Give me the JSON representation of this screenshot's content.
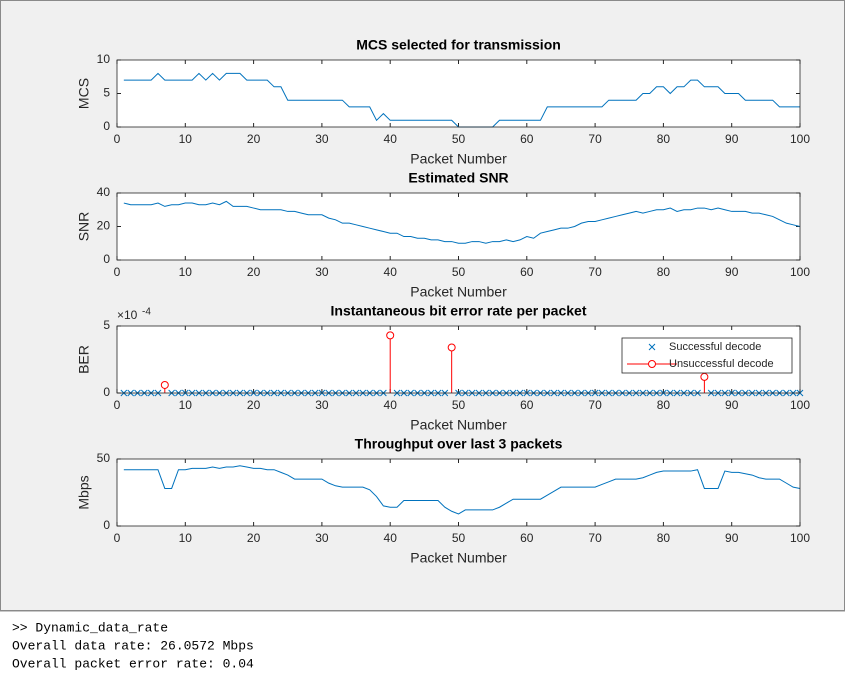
{
  "chart_data": [
    {
      "type": "line",
      "title": "MCS selected for transmission",
      "xlabel": "Packet Number",
      "ylabel": "MCS",
      "color": "#0072bd",
      "x": [
        1,
        2,
        3,
        4,
        5,
        6,
        7,
        8,
        9,
        10,
        11,
        12,
        13,
        14,
        15,
        16,
        17,
        18,
        19,
        20,
        21,
        22,
        23,
        24,
        25,
        26,
        27,
        28,
        29,
        30,
        31,
        32,
        33,
        34,
        35,
        36,
        37,
        38,
        39,
        40,
        41,
        42,
        43,
        44,
        45,
        46,
        47,
        48,
        49,
        50,
        51,
        52,
        53,
        54,
        55,
        56,
        57,
        58,
        59,
        60,
        61,
        62,
        63,
        64,
        65,
        66,
        67,
        68,
        69,
        70,
        71,
        72,
        73,
        74,
        75,
        76,
        77,
        78,
        79,
        80,
        81,
        82,
        83,
        84,
        85,
        86,
        87,
        88,
        89,
        90,
        91,
        92,
        93,
        94,
        95,
        96,
        97,
        98,
        99,
        100
      ],
      "values": [
        7,
        7,
        7,
        7,
        7,
        8,
        7,
        7,
        7,
        7,
        7,
        8,
        7,
        8,
        7,
        8,
        8,
        8,
        7,
        7,
        7,
        7,
        6,
        6,
        4,
        4,
        4,
        4,
        4,
        4,
        4,
        4,
        4,
        3,
        3,
        3,
        3,
        1,
        2,
        1,
        1,
        1,
        1,
        1,
        1,
        1,
        1,
        1,
        1,
        0,
        0,
        0,
        0,
        0,
        0,
        1,
        1,
        1,
        1,
        1,
        1,
        1,
        3,
        3,
        3,
        3,
        3,
        3,
        3,
        3,
        3,
        4,
        4,
        4,
        4,
        4,
        5,
        5,
        6,
        6,
        5,
        6,
        6,
        7,
        7,
        6,
        6,
        6,
        5,
        5,
        5,
        4,
        4,
        4,
        4,
        4,
        3,
        3,
        3,
        3
      ],
      "xlim": [
        0,
        100
      ],
      "xticks": [
        0,
        10,
        20,
        30,
        40,
        50,
        60,
        70,
        80,
        90,
        100
      ],
      "ylim": [
        0,
        10
      ],
      "yticks": [
        0,
        5,
        10
      ]
    },
    {
      "type": "line",
      "title": "Estimated SNR",
      "xlabel": "Packet Number",
      "ylabel": "SNR",
      "color": "#0072bd",
      "x": [
        1,
        2,
        3,
        4,
        5,
        6,
        7,
        8,
        9,
        10,
        11,
        12,
        13,
        14,
        15,
        16,
        17,
        18,
        19,
        20,
        21,
        22,
        23,
        24,
        25,
        26,
        27,
        28,
        29,
        30,
        31,
        32,
        33,
        34,
        35,
        36,
        37,
        38,
        39,
        40,
        41,
        42,
        43,
        44,
        45,
        46,
        47,
        48,
        49,
        50,
        51,
        52,
        53,
        54,
        55,
        56,
        57,
        58,
        59,
        60,
        61,
        62,
        63,
        64,
        65,
        66,
        67,
        68,
        69,
        70,
        71,
        72,
        73,
        74,
        75,
        76,
        77,
        78,
        79,
        80,
        81,
        82,
        83,
        84,
        85,
        86,
        87,
        88,
        89,
        90,
        91,
        92,
        93,
        94,
        95,
        96,
        97,
        98,
        99,
        100
      ],
      "values": [
        34,
        33,
        33,
        33,
        33,
        34,
        32,
        33,
        33,
        34,
        34,
        33,
        33,
        34,
        33,
        35,
        32,
        32,
        32,
        31,
        30,
        30,
        30,
        30,
        29,
        29,
        28,
        27,
        27,
        27,
        25,
        24,
        22,
        22,
        21,
        20,
        19,
        18,
        17,
        16,
        16,
        14,
        14,
        13,
        13,
        12,
        12,
        11,
        11,
        10,
        10,
        11,
        11,
        10,
        11,
        11,
        12,
        11,
        12,
        14,
        13,
        16,
        17,
        18,
        19,
        19,
        20,
        22,
        23,
        23,
        24,
        25,
        26,
        27,
        28,
        29,
        28,
        29,
        30,
        30,
        31,
        29,
        30,
        30,
        31,
        31,
        30,
        31,
        30,
        29,
        29,
        29,
        28,
        28,
        27,
        26,
        24,
        22,
        21,
        20
      ],
      "xlim": [
        0,
        100
      ],
      "xticks": [
        0,
        10,
        20,
        30,
        40,
        50,
        60,
        70,
        80,
        90,
        100
      ],
      "ylim": [
        0,
        40
      ],
      "yticks": [
        0,
        20,
        40
      ]
    },
    {
      "type": "stem",
      "title": "Instantaneous bit error rate per packet",
      "xlabel": "Packet Number",
      "ylabel": "BER",
      "y_multiplier": "×10",
      "y_multiplier_exponent": "-4",
      "legend": "northeast",
      "series": [
        {
          "name": "Successful decode",
          "color": "#0072bd",
          "marker": "x",
          "x": [
            1,
            2,
            3,
            4,
            5,
            6,
            8,
            9,
            10,
            11,
            12,
            13,
            14,
            15,
            16,
            17,
            18,
            19,
            20,
            21,
            22,
            23,
            24,
            25,
            26,
            27,
            28,
            29,
            30,
            31,
            32,
            33,
            34,
            35,
            36,
            37,
            38,
            39,
            41,
            42,
            43,
            44,
            45,
            46,
            47,
            48,
            50,
            51,
            52,
            53,
            54,
            55,
            56,
            57,
            58,
            59,
            60,
            61,
            62,
            63,
            64,
            65,
            66,
            67,
            68,
            69,
            70,
            71,
            72,
            73,
            74,
            75,
            76,
            77,
            78,
            79,
            80,
            81,
            82,
            83,
            84,
            85,
            87,
            88,
            89,
            90,
            91,
            92,
            93,
            94,
            95,
            96,
            97,
            98,
            99,
            100
          ],
          "values": [
            0,
            0,
            0,
            0,
            0,
            0,
            0,
            0,
            0,
            0,
            0,
            0,
            0,
            0,
            0,
            0,
            0,
            0,
            0,
            0,
            0,
            0,
            0,
            0,
            0,
            0,
            0,
            0,
            0,
            0,
            0,
            0,
            0,
            0,
            0,
            0,
            0,
            0,
            0,
            0,
            0,
            0,
            0,
            0,
            0,
            0,
            0,
            0,
            0,
            0,
            0,
            0,
            0,
            0,
            0,
            0,
            0,
            0,
            0,
            0,
            0,
            0,
            0,
            0,
            0,
            0,
            0,
            0,
            0,
            0,
            0,
            0,
            0,
            0,
            0,
            0,
            0,
            0,
            0,
            0,
            0,
            0,
            0,
            0,
            0,
            0,
            0,
            0,
            0,
            0,
            0,
            0,
            0,
            0,
            0,
            0
          ]
        },
        {
          "name": "Unsuccessful decode",
          "color": "#ff0000",
          "marker": "o",
          "x": [
            7,
            40,
            49,
            86
          ],
          "values": [
            6e-05,
            0.00043,
            0.00034,
            0.00012
          ]
        }
      ],
      "xlim": [
        0,
        100
      ],
      "xticks": [
        0,
        10,
        20,
        30,
        40,
        50,
        60,
        70,
        80,
        90,
        100
      ],
      "ylim": [
        0,
        0.0005
      ],
      "yticks": [
        0,
        {
          "value": 0.0005,
          "label": "5"
        }
      ]
    },
    {
      "type": "line",
      "title": "Throughput over last 3 packets",
      "xlabel": "Packet Number",
      "ylabel": "Mbps",
      "color": "#0072bd",
      "x": [
        1,
        2,
        3,
        4,
        5,
        6,
        7,
        8,
        9,
        10,
        11,
        12,
        13,
        14,
        15,
        16,
        17,
        18,
        19,
        20,
        21,
        22,
        23,
        24,
        25,
        26,
        27,
        28,
        29,
        30,
        31,
        32,
        33,
        34,
        35,
        36,
        37,
        38,
        39,
        40,
        41,
        42,
        43,
        44,
        45,
        46,
        47,
        48,
        49,
        50,
        51,
        52,
        53,
        54,
        55,
        56,
        57,
        58,
        59,
        60,
        61,
        62,
        63,
        64,
        65,
        66,
        67,
        68,
        69,
        70,
        71,
        72,
        73,
        74,
        75,
        76,
        77,
        78,
        79,
        80,
        81,
        82,
        83,
        84,
        85,
        86,
        87,
        88,
        89,
        90,
        91,
        92,
        93,
        94,
        95,
        96,
        97,
        98,
        99,
        100
      ],
      "values": [
        42,
        42,
        42,
        42,
        42,
        42,
        28,
        28,
        42,
        42,
        43,
        43,
        43,
        44,
        43,
        44,
        44,
        45,
        44,
        43,
        43,
        42,
        42,
        40,
        38,
        35,
        35,
        35,
        35,
        35,
        32,
        30,
        29,
        29,
        29,
        29,
        27,
        22,
        15,
        14,
        14,
        19,
        19,
        19,
        19,
        19,
        19,
        14,
        11,
        9,
        12,
        12,
        12,
        12,
        12,
        14,
        17,
        20,
        20,
        20,
        20,
        20,
        23,
        26,
        29,
        29,
        29,
        29,
        29,
        29,
        31,
        33,
        35,
        35,
        35,
        35,
        36,
        38,
        40,
        41,
        41,
        41,
        41,
        41,
        42,
        28,
        28,
        28,
        41,
        40,
        40,
        39,
        38,
        36,
        35,
        35,
        35,
        32,
        29,
        28
      ],
      "xlim": [
        0,
        100
      ],
      "xticks": [
        0,
        10,
        20,
        30,
        40,
        50,
        60,
        70,
        80,
        90,
        100
      ],
      "ylim": [
        0,
        50
      ],
      "yticks": [
        0,
        50
      ]
    }
  ],
  "console": {
    "lines": [
      ">> Dynamic_data_rate",
      "Overall data rate: 26.0572 Mbps",
      "Overall packet error rate: 0.04"
    ]
  }
}
